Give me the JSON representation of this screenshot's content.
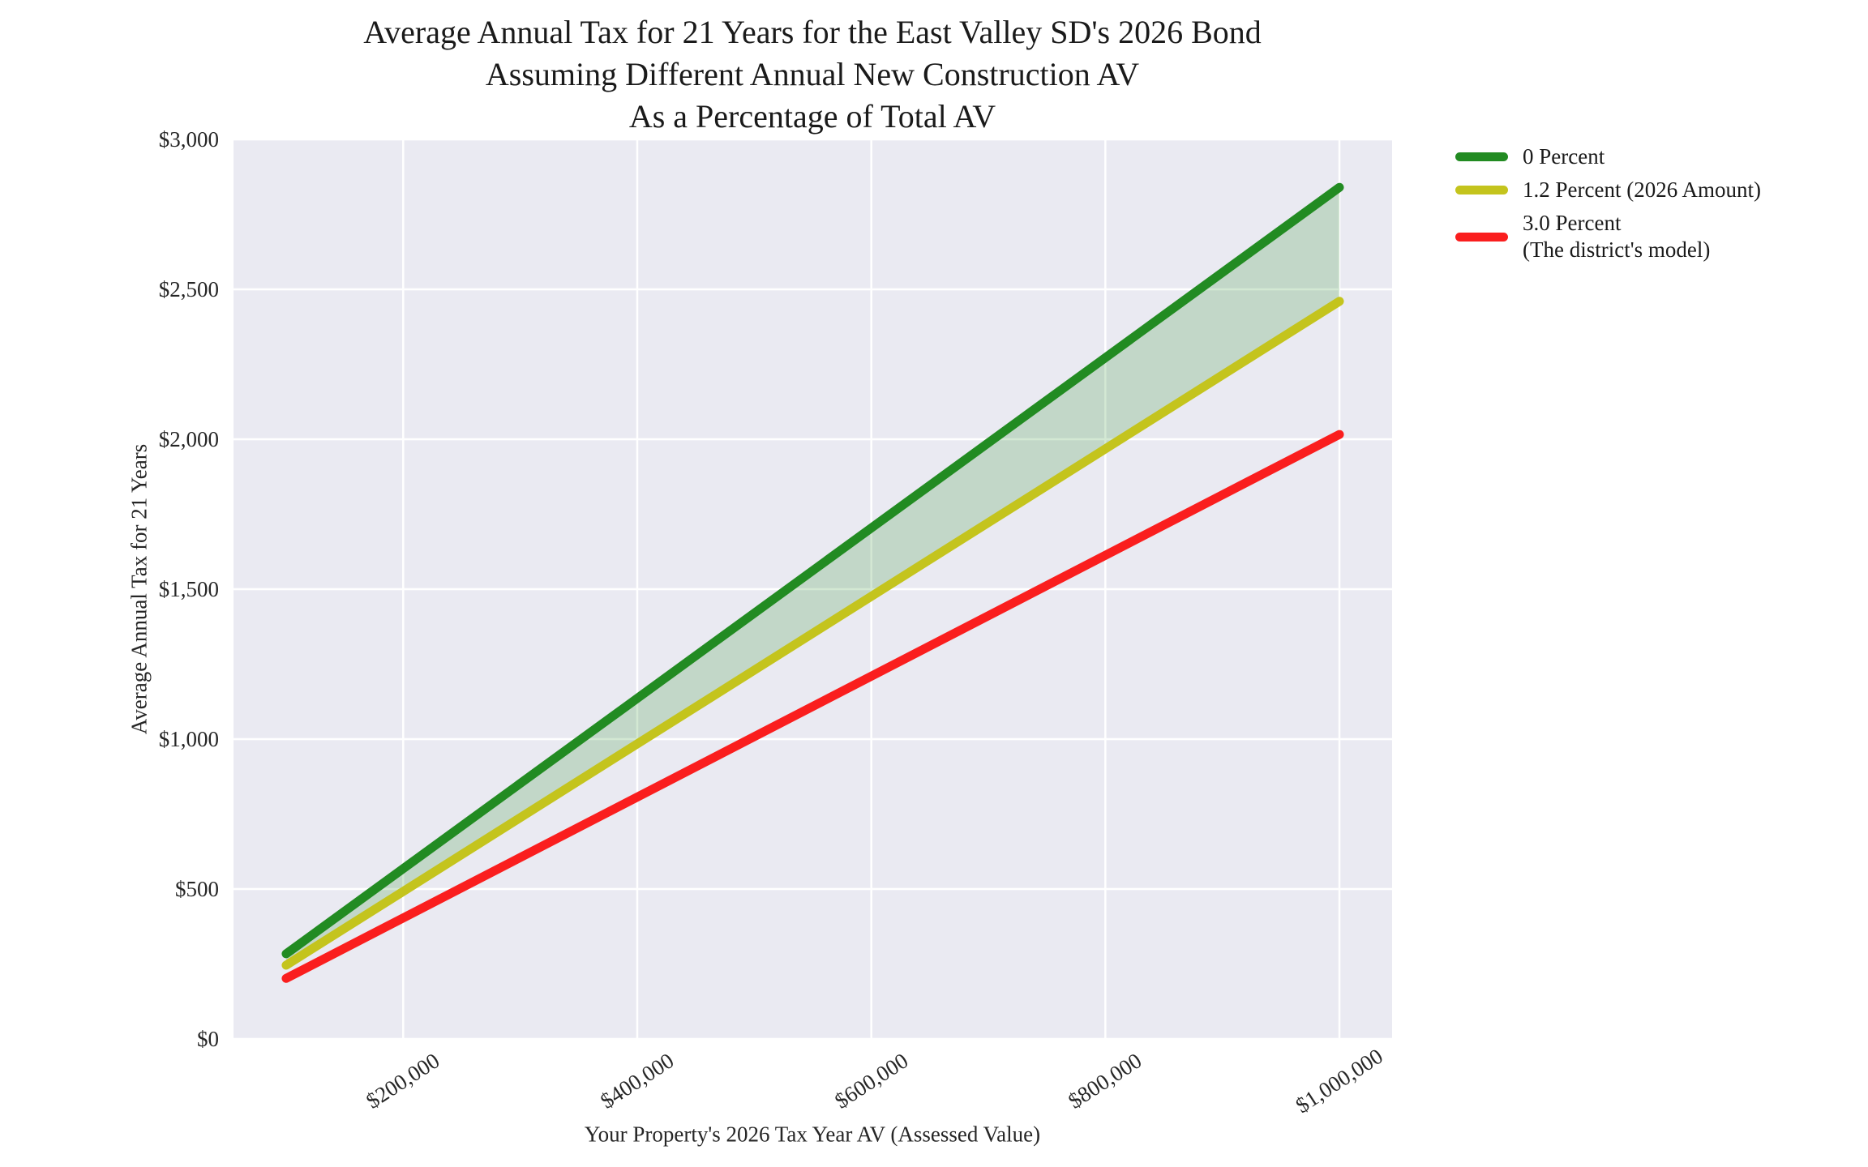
{
  "title": {
    "text": "Average Annual Tax for 21 Years for the East Valley SD's 2026 Bond\nAssuming Different Annual New Construction AV\nAs a Percentage of Total AV"
  },
  "axes": {
    "x_label": "Your Property's 2026 Tax Year AV (Assessed Value)",
    "y_label": "Average Annual Tax for 21 Years"
  },
  "legend": {
    "position": "outside-upper-right",
    "items": [
      {
        "label": "0 Percent",
        "color": "#228B22"
      },
      {
        "label": "1.2 Percent (2026 Amount)",
        "color": "#c4c41d"
      },
      {
        "label": "3.0 Percent\n(The district's model)",
        "color": "#fa1e1e"
      }
    ]
  },
  "chart_data": {
    "type": "line",
    "title": "Average Annual Tax for 21 Years for the East Valley SD's 2026 Bond Assuming Different Annual New Construction AV As a Percentage of Total AV",
    "xlabel": "Your Property's 2026 Tax Year AV (Assessed Value)",
    "ylabel": "Average Annual Tax for 21 Years",
    "x": [
      100000,
      1000000
    ],
    "series": [
      {
        "name": "0 Percent",
        "color": "#228B22",
        "values": [
          284,
          2840
        ]
      },
      {
        "name": "1.2 Percent (2026 Amount)",
        "color": "#c4c41d",
        "values": [
          246,
          2460
        ]
      },
      {
        "name": "3.0 Percent (The district's model)",
        "color": "#fa1e1e",
        "values": [
          202,
          2016
        ]
      }
    ],
    "fill_between": {
      "upper_series": "0 Percent",
      "lower_series": "1.2 Percent (2026 Amount)",
      "color": "rgba(34,139,34,0.2)"
    },
    "xlim": [
      55000,
      1045000
    ],
    "ylim": [
      0,
      3000
    ],
    "xticks": {
      "values": [
        200000,
        400000,
        600000,
        800000,
        1000000
      ],
      "labels": [
        "$200,000",
        "$400,000",
        "$600,000",
        "$800,000",
        "$1,000,000"
      ]
    },
    "yticks": {
      "values": [
        0,
        500,
        1000,
        1500,
        2000,
        2500,
        3000
      ],
      "labels": [
        "$0",
        "$500",
        "$1,000",
        "$1,500",
        "$2,000",
        "$2,500",
        "$3,000"
      ]
    },
    "grid": true,
    "grid_color": "#ffffff",
    "plot_bg": "#eaeaf2",
    "line_width": 11
  }
}
